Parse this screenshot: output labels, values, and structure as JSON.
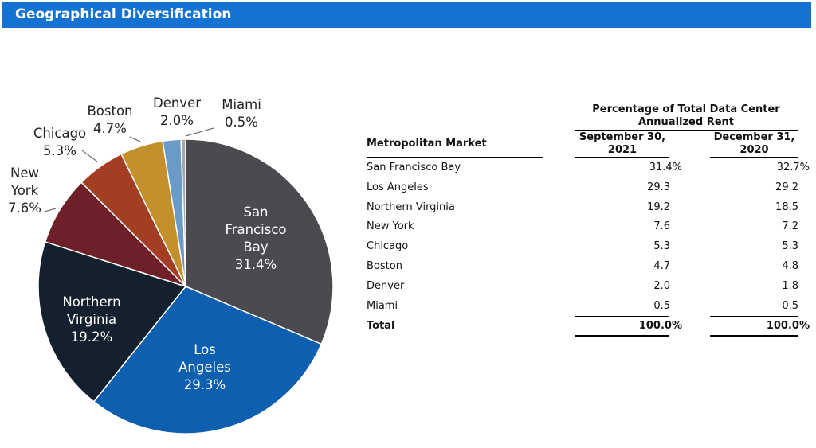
{
  "header": {
    "title": "Geographical Diversification"
  },
  "colors": {
    "header_bar": "#1473d2",
    "slices": [
      "#4a4a4f",
      "#0f5fb0",
      "#15202e",
      "#6e1f27",
      "#a33d24",
      "#c4902c",
      "#6b9ac7",
      "#a8a8a8"
    ]
  },
  "chart_data": {
    "type": "pie",
    "slices": [
      {
        "label": "San Francisco Bay",
        "value": 31.4,
        "display": "31.4%",
        "lines": [
          "San",
          "Francisco",
          "Bay",
          "31.4%"
        ]
      },
      {
        "label": "Los Angeles",
        "value": 29.3,
        "display": "29.3%",
        "lines": [
          "Los",
          "Angeles",
          "29.3%"
        ]
      },
      {
        "label": "Northern Virginia",
        "value": 19.2,
        "display": "19.2%",
        "lines": [
          "Northern",
          "Virginia",
          "19.2%"
        ]
      },
      {
        "label": "New York",
        "value": 7.6,
        "display": "7.6%",
        "lines": [
          "New",
          "York",
          "7.6%"
        ]
      },
      {
        "label": "Chicago",
        "value": 5.3,
        "display": "5.3%",
        "lines": [
          "Chicago",
          "5.3%"
        ]
      },
      {
        "label": "Boston",
        "value": 4.7,
        "display": "4.7%",
        "lines": [
          "Boston",
          "4.7%"
        ]
      },
      {
        "label": "Denver",
        "value": 2.0,
        "display": "2.0%",
        "lines": [
          "Denver",
          "2.0%"
        ]
      },
      {
        "label": "Miami",
        "value": 0.5,
        "display": "0.5%",
        "lines": [
          "Miami",
          "0.5%"
        ]
      }
    ],
    "start_angle": "12 o'clock",
    "direction": "clockwise"
  },
  "table": {
    "group_header": "Percentage of Total Data Center Annualized Rent",
    "group_header_lines": [
      "Percentage of Total Data Center",
      "Annualized Rent"
    ],
    "col_market": "Metropolitan Market",
    "col1_lines": [
      "September 30,",
      "2021"
    ],
    "col2_lines": [
      "December 31,",
      "2020"
    ],
    "rows": [
      {
        "market": "San Francisco Bay",
        "sep2021": "31.4%",
        "dec2020": "32.7%"
      },
      {
        "market": "Los Angeles",
        "sep2021": "29.3",
        "dec2020": "29.2"
      },
      {
        "market": "Northern Virginia",
        "sep2021": "19.2",
        "dec2020": "18.5"
      },
      {
        "market": "New York",
        "sep2021": "7.6",
        "dec2020": "7.2"
      },
      {
        "market": "Chicago",
        "sep2021": "5.3",
        "dec2020": "5.3"
      },
      {
        "market": "Boston",
        "sep2021": "4.7",
        "dec2020": "4.8"
      },
      {
        "market": "Denver",
        "sep2021": "2.0",
        "dec2020": "1.8"
      },
      {
        "market": "Miami",
        "sep2021": "0.5",
        "dec2020": "0.5"
      }
    ],
    "total": {
      "market": "Total",
      "sep2021": "100.0%",
      "dec2020": "100.0%"
    }
  }
}
